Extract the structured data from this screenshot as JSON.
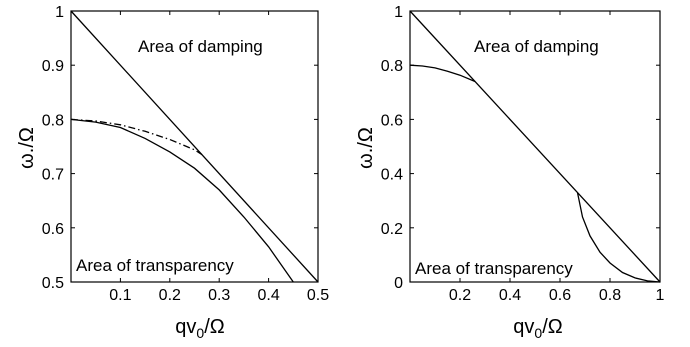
{
  "chart_data": [
    {
      "type": "line",
      "xlabel": "qv",
      "xlabel_sub": "0",
      "xlabel_suffix": "/Ω",
      "ylabel": "ω./Ω",
      "xlim": [
        0,
        0.5
      ],
      "ylim": [
        0.5,
        1
      ],
      "xticks": [
        0.1,
        0.2,
        0.3,
        0.4,
        0.5
      ],
      "xtick_labels": [
        "0.1",
        "0.2",
        "0.3",
        "0.4",
        "0.5"
      ],
      "yticks": [
        0.5,
        0.6,
        0.7,
        0.8,
        0.9,
        1
      ],
      "ytick_labels": [
        "0.5",
        "0.6",
        "0.7",
        "0.8",
        "0.9",
        "1"
      ],
      "annotations": [
        "Area of damping",
        "Area of transparency"
      ],
      "grid": false,
      "series": [
        {
          "style": "solid",
          "x": [
            0,
            0.5
          ],
          "y": [
            1,
            0.5
          ]
        },
        {
          "style": "solid",
          "x": [
            0,
            0.05,
            0.1,
            0.15,
            0.2,
            0.25,
            0.3,
            0.35,
            0.4,
            0.45
          ],
          "y": [
            0.8,
            0.795,
            0.785,
            0.765,
            0.74,
            0.71,
            0.67,
            0.62,
            0.565,
            0.5
          ]
        },
        {
          "style": "dashdot",
          "x": [
            0,
            0.05,
            0.1,
            0.15,
            0.2,
            0.25,
            0.265
          ],
          "y": [
            0.8,
            0.797,
            0.79,
            0.778,
            0.763,
            0.744,
            0.735
          ]
        }
      ]
    },
    {
      "type": "line",
      "xlabel": "qv",
      "xlabel_sub": "0",
      "xlabel_suffix": "/Ω",
      "ylabel": "ω./Ω",
      "xlim": [
        0,
        1
      ],
      "ylim": [
        0,
        1
      ],
      "xticks": [
        0.2,
        0.4,
        0.6,
        0.8,
        1
      ],
      "xtick_labels": [
        "0.2",
        "0.4",
        "0.6",
        "0.8",
        "1"
      ],
      "yticks": [
        0,
        0.2,
        0.4,
        0.6,
        0.8,
        1
      ],
      "ytick_labels": [
        "0",
        "0.2",
        "0.4",
        "0.6",
        "0.8",
        "1"
      ],
      "annotations": [
        "Area of damping",
        "Area of transparency"
      ],
      "grid": false,
      "series": [
        {
          "style": "solid",
          "x": [
            0,
            1
          ],
          "y": [
            1,
            0
          ]
        },
        {
          "style": "solid",
          "x": [
            0,
            0.05,
            0.1,
            0.15,
            0.2,
            0.26
          ],
          "y": [
            0.8,
            0.797,
            0.79,
            0.778,
            0.763,
            0.74
          ]
        },
        {
          "style": "solid",
          "x": [
            0.67,
            0.69,
            0.72,
            0.76,
            0.8,
            0.85,
            0.9,
            0.95,
            1
          ],
          "y": [
            0.33,
            0.24,
            0.17,
            0.11,
            0.07,
            0.035,
            0.015,
            0.004,
            0
          ]
        }
      ]
    }
  ]
}
